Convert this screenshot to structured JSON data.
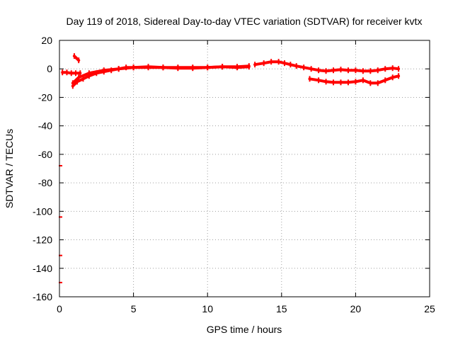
{
  "chart_data": {
    "type": "scatter",
    "title": "Day 119 of 2018, Sidereal Day-to-day VTEC variation (SDTVAR) for receiver kvtx",
    "xlabel": "GPS time / hours",
    "ylabel": "SDTVAR / TECUs",
    "xlim": [
      0,
      25
    ],
    "ylim": [
      -160,
      20
    ],
    "xticks": [
      0,
      5,
      10,
      15,
      20,
      25
    ],
    "yticks": [
      20,
      0,
      -20,
      -40,
      -60,
      -80,
      -100,
      -120,
      -140,
      -160
    ],
    "grid": true,
    "legend": "none",
    "series_color": "#ff0000",
    "series": [
      {
        "name": "track-main",
        "x": [
          0.9,
          1.2,
          1.6,
          2.0,
          2.5,
          3.0,
          3.5,
          4.0,
          4.5,
          5.0,
          6.0,
          7.0,
          8.0,
          9.0,
          10.0,
          11.0,
          12.0,
          12.8
        ],
        "y": [
          -12,
          -9,
          -7,
          -5,
          -3,
          -2,
          -1,
          0,
          1,
          1,
          1,
          1,
          1,
          1,
          1,
          1.5,
          1.5,
          2
        ]
      },
      {
        "name": "track-upper",
        "x": [
          0.9,
          1.3,
          2.0,
          3.0,
          4.0,
          5.0,
          6.0,
          7.0,
          8.0,
          9.0,
          10.0,
          11.0,
          12.0,
          12.8
        ],
        "y": [
          -10,
          -6,
          -3,
          -1,
          0,
          1,
          1.5,
          1,
          0.5,
          0.5,
          1,
          1.5,
          1,
          1.5
        ]
      },
      {
        "name": "track-after",
        "x": [
          13.2,
          13.8,
          14.3,
          14.8,
          15.2,
          15.6,
          16.0,
          16.5,
          17.0,
          17.5,
          18.0,
          18.5,
          19.0,
          19.5,
          20.0,
          20.5,
          21.0,
          21.5,
          22.0,
          22.5,
          22.9
        ],
        "y": [
          3,
          4,
          5,
          5,
          4,
          3,
          2,
          1,
          0,
          -1,
          -1.5,
          -1,
          -0.5,
          -1,
          -1,
          -1.5,
          -1.5,
          -1,
          0,
          0.5,
          0
        ]
      },
      {
        "name": "track-lower",
        "x": [
          16.9,
          17.5,
          18.0,
          18.5,
          19.0,
          19.5,
          20.0,
          20.5,
          21.0,
          21.5,
          22.0,
          22.5,
          22.9
        ],
        "y": [
          -7,
          -8,
          -9,
          -9.5,
          -9.5,
          -9.5,
          -9,
          -8,
          -10,
          -10,
          -8,
          -6,
          -5
        ]
      },
      {
        "name": "left-start",
        "x": [
          0.2,
          0.5,
          0.8,
          1.1,
          1.4
        ],
        "y": [
          -2.5,
          -2.5,
          -3,
          -3,
          -3
        ]
      },
      {
        "name": "spike",
        "x": [
          1.0,
          1.3
        ],
        "y": [
          9,
          6
        ]
      },
      {
        "name": "outliers",
        "x": [
          0,
          0,
          0,
          0
        ],
        "y": [
          -68,
          -104,
          -131,
          -150
        ]
      }
    ]
  }
}
